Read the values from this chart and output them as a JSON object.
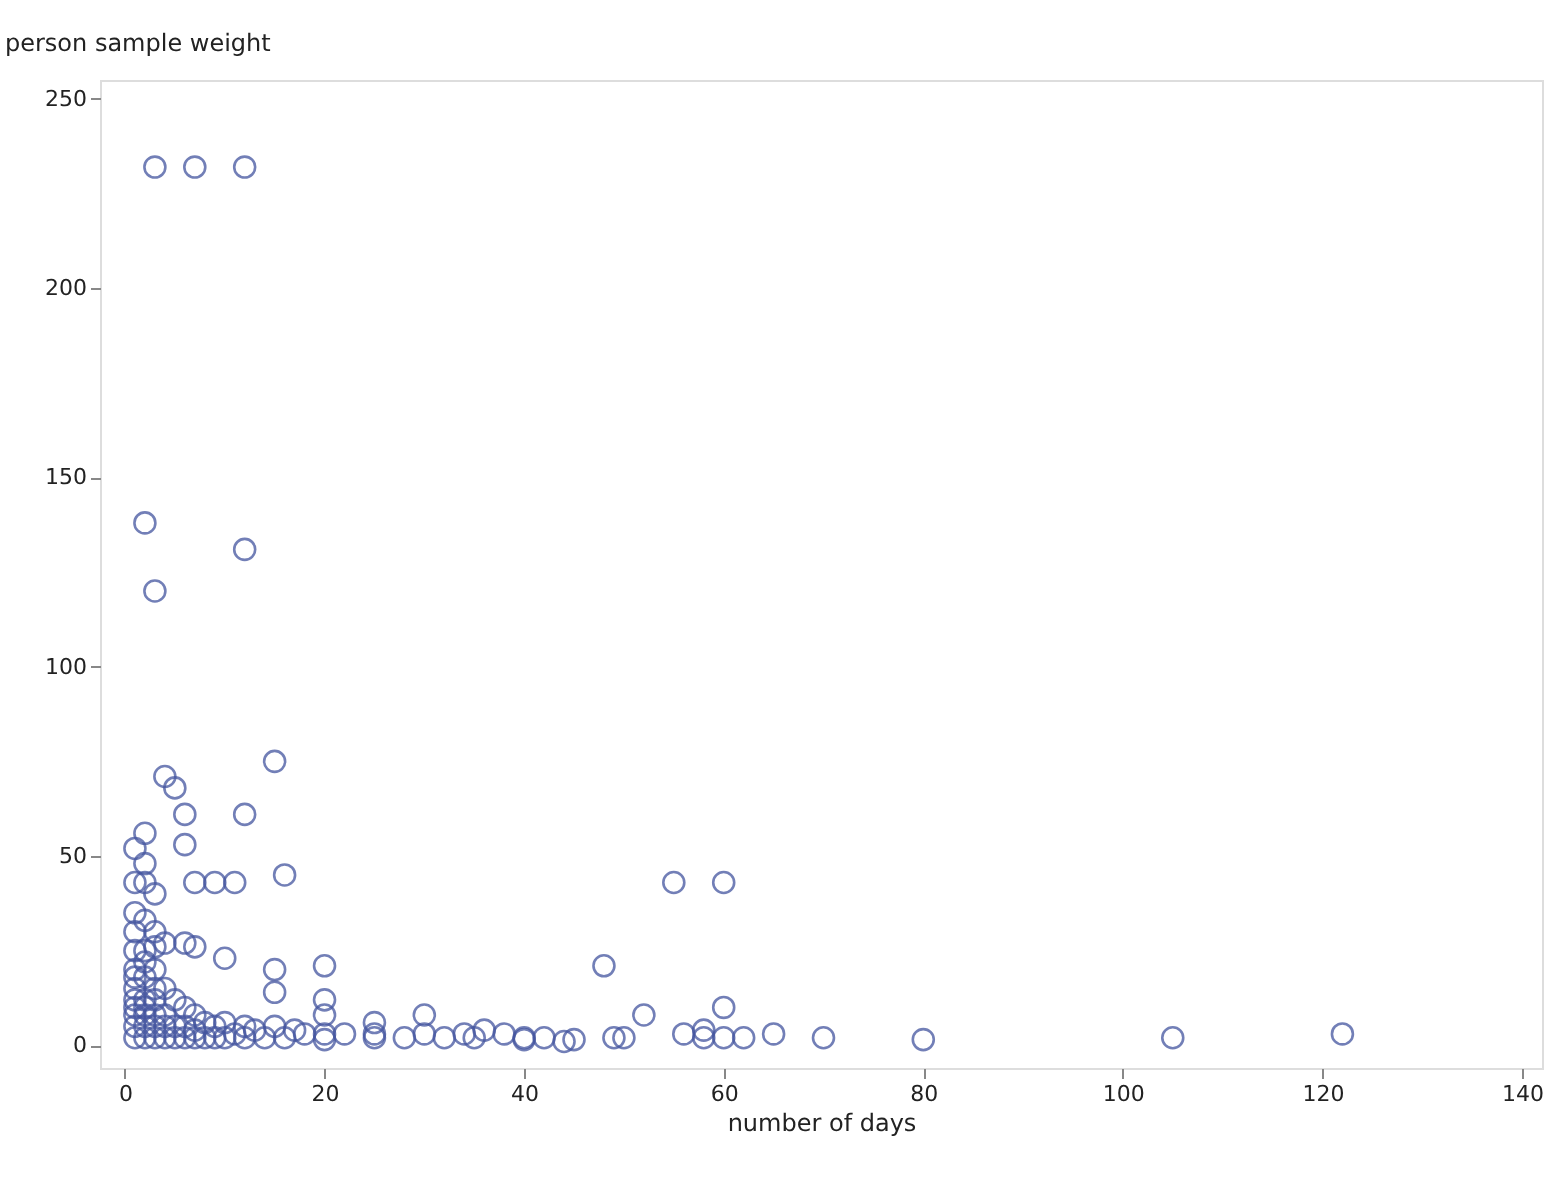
{
  "chart_data": {
    "type": "scatter",
    "xlabel": "number of days",
    "ylabel": "person sample weight",
    "xlim": [
      -2.5,
      142
    ],
    "ylim": [
      -6,
      255
    ],
    "xticks": [
      0,
      20,
      40,
      60,
      80,
      100,
      120,
      140
    ],
    "yticks": [
      0,
      50,
      100,
      150,
      200,
      250
    ],
    "grid": false,
    "marker": "circle",
    "series": [
      {
        "color": "#44559f",
        "x": [
          3,
          7,
          12,
          2,
          12,
          3,
          15,
          4,
          5,
          6,
          12,
          2,
          6,
          7,
          9,
          11,
          16,
          1,
          1,
          2,
          2,
          3,
          1,
          1,
          2,
          3,
          1,
          2,
          3,
          4,
          6,
          7,
          10,
          15,
          15,
          20,
          20,
          20,
          3,
          1,
          2,
          4,
          5,
          6,
          7,
          8,
          9,
          10,
          12,
          13,
          15,
          17,
          18,
          20,
          22,
          25,
          25,
          25,
          28,
          30,
          30,
          32,
          34,
          35,
          36,
          38,
          40,
          40,
          42,
          44,
          45,
          48,
          49,
          50,
          52,
          55,
          56,
          58,
          58,
          60,
          60,
          60,
          62,
          65,
          70,
          80,
          105,
          122,
          1,
          1,
          1,
          1,
          1,
          1,
          2,
          2,
          2,
          2,
          2,
          3,
          3,
          3,
          3,
          3,
          4,
          4,
          4,
          5,
          5,
          6,
          6,
          7,
          7,
          8,
          9,
          10,
          11,
          12,
          14,
          16,
          20,
          1,
          2
        ],
        "values": [
          232,
          232,
          232,
          138,
          131,
          120,
          75,
          71,
          68,
          61,
          61,
          56,
          53,
          43,
          43,
          43,
          45,
          52,
          43,
          48,
          43,
          40,
          35,
          30,
          33,
          30,
          25,
          25,
          26,
          27,
          27,
          26,
          23,
          20,
          14,
          21,
          12,
          8,
          20,
          20,
          18,
          15,
          12,
          10,
          8,
          6,
          5,
          6,
          5,
          4,
          5,
          4,
          3,
          3,
          3,
          6,
          3,
          2,
          2,
          8,
          3,
          2,
          3,
          2,
          4,
          3,
          2,
          1.5,
          2,
          1,
          1.5,
          21,
          2,
          2,
          8,
          43,
          3,
          4,
          2,
          43,
          10,
          2,
          2,
          3,
          2,
          1.5,
          2,
          3,
          2,
          5,
          8,
          10,
          12,
          15,
          2,
          5,
          8,
          10,
          12,
          2,
          5,
          8,
          12,
          15,
          2,
          5,
          8,
          2,
          5,
          2,
          5,
          2,
          4,
          2,
          2,
          2,
          3,
          2,
          2,
          2,
          1.5,
          18,
          22
        ]
      }
    ]
  }
}
